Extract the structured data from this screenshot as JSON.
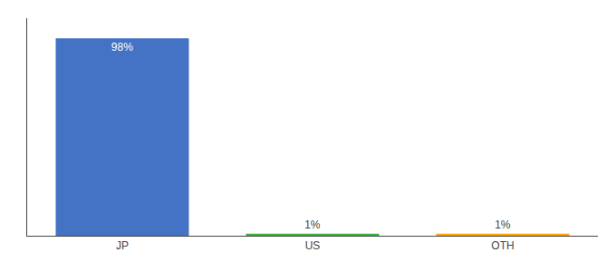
{
  "chart_data": {
    "type": "bar",
    "categories": [
      "JP",
      "US",
      "OTH"
    ],
    "values": [
      98,
      1,
      1
    ],
    "value_labels": [
      "98%",
      "1%",
      "1%"
    ],
    "data_labels": true,
    "colors": [
      "#4472c4",
      "#3cb043",
      "#ffa500"
    ],
    "ylim": [
      0,
      108
    ],
    "tick_labels": "x",
    "grid": false
  }
}
